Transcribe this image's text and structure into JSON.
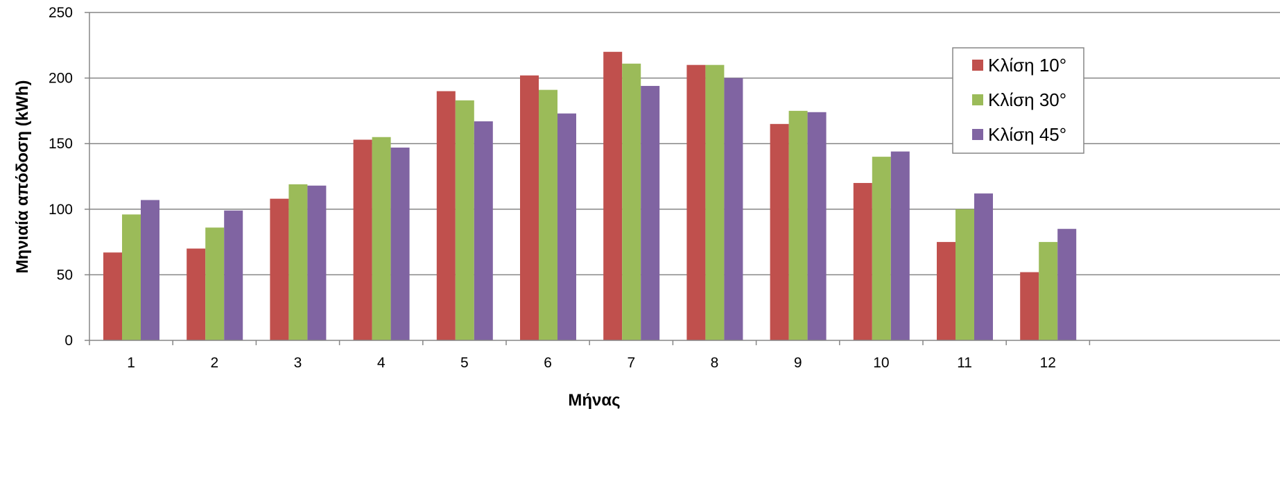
{
  "chart_data": {
    "type": "bar",
    "title": "",
    "xlabel": "Μήνας",
    "ylabel": "Μηνιαία απόδοση (kWh)",
    "ylim": [
      0,
      250
    ],
    "yticks": [
      0,
      50,
      100,
      150,
      200,
      250
    ],
    "grid": true,
    "legend_position": "right",
    "categories": [
      "1",
      "2",
      "3",
      "4",
      "5",
      "6",
      "7",
      "8",
      "9",
      "10",
      "11",
      "12"
    ],
    "series": [
      {
        "name": "Κλίση 10°",
        "color": "#c0504d",
        "values": [
          67,
          70,
          108,
          153,
          190,
          202,
          220,
          210,
          165,
          120,
          75,
          52
        ]
      },
      {
        "name": "Κλίση 30°",
        "color": "#9bbb59",
        "values": [
          96,
          86,
          119,
          155,
          183,
          191,
          211,
          210,
          175,
          140,
          100,
          75
        ]
      },
      {
        "name": "Κλίση 45°",
        "color": "#8064a2",
        "values": [
          107,
          99,
          118,
          147,
          167,
          173,
          194,
          200,
          174,
          144,
          112,
          85
        ]
      }
    ]
  }
}
